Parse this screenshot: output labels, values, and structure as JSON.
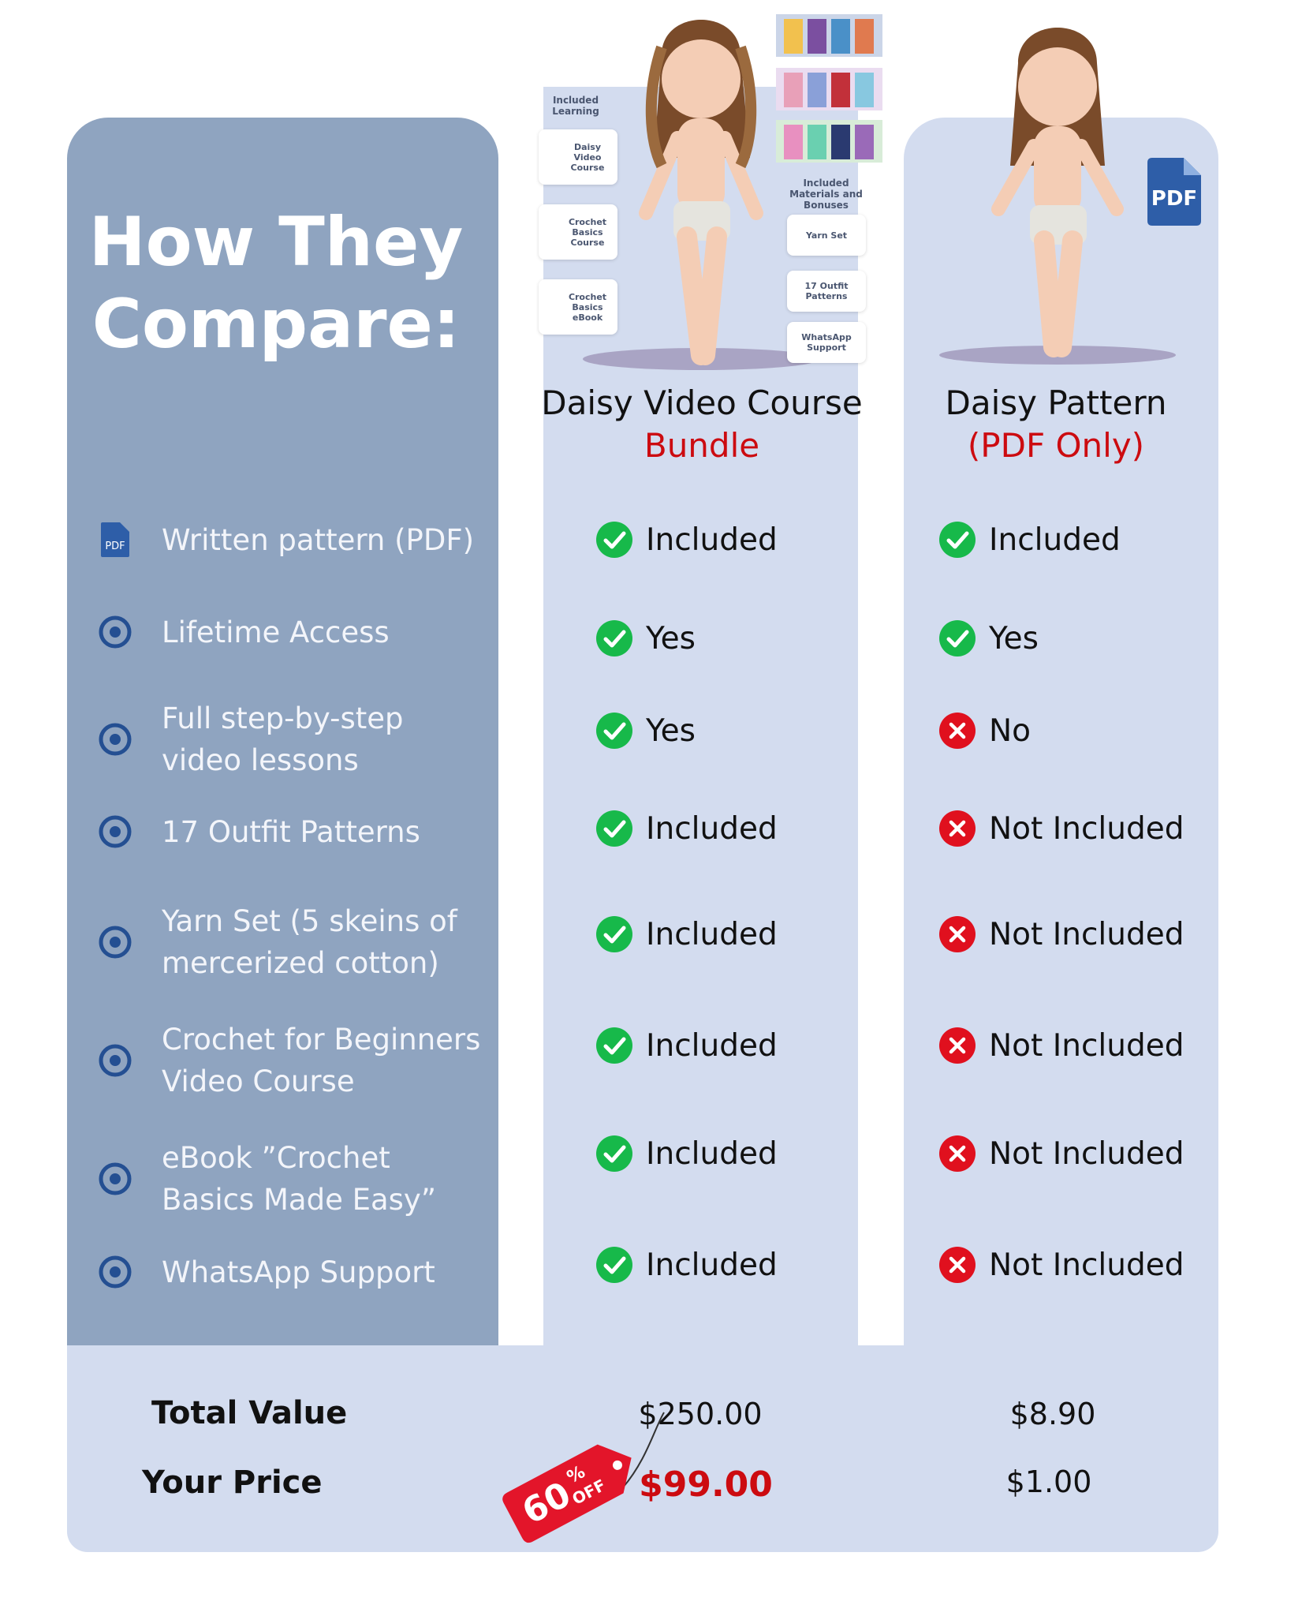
{
  "title": "How They Compare:",
  "columns": [
    {
      "name": "Daisy Video Course",
      "highlight": "Bundle"
    },
    {
      "name": "Daisy Pattern",
      "highlight": "(PDF Only)"
    }
  ],
  "bundle_image": {
    "learning_heading": "Included Learning",
    "learning_items": [
      "Daisy Video Course",
      "Crochet Basics Course",
      "Crochet Basics eBook"
    ],
    "materials_heading": "Included Materials and Bonuses",
    "materials_items": [
      "Yarn Set",
      "17 Outfit Patterns",
      "WhatsApp Support"
    ]
  },
  "pattern_icon": "PDF",
  "features": [
    "Written pattern (PDF)",
    "Lifetime Access",
    "Full step-by-step video lessons",
    "17 Outfit Patterns",
    "Yarn Set (5 skeins of mercerized cotton)",
    "Crochet for Beginners Video Course",
    "eBook ”Crochet Basics Made Easy”",
    "WhatsApp Support"
  ],
  "feature_icon_text": "PDF",
  "table": {
    "rows": [
      [
        {
          "status": "check",
          "text": "Included"
        },
        {
          "status": "check",
          "text": "Included"
        }
      ],
      [
        {
          "status": "check",
          "text": "Yes"
        },
        {
          "status": "check",
          "text": "Yes"
        }
      ],
      [
        {
          "status": "check",
          "text": "Yes"
        },
        {
          "status": "cross",
          "text": "No"
        }
      ],
      [
        {
          "status": "check",
          "text": "Included"
        },
        {
          "status": "cross",
          "text": "Not Included"
        }
      ],
      [
        {
          "status": "check",
          "text": "Included"
        },
        {
          "status": "cross",
          "text": "Not Included"
        }
      ],
      [
        {
          "status": "check",
          "text": "Included"
        },
        {
          "status": "cross",
          "text": "Not Included"
        }
      ],
      [
        {
          "status": "check",
          "text": "Included"
        },
        {
          "status": "cross",
          "text": "Not Included"
        }
      ],
      [
        {
          "status": "check",
          "text": "Included"
        },
        {
          "status": "cross",
          "text": "Not Included"
        }
      ]
    ]
  },
  "pricing": {
    "labels": [
      "Total Value",
      "Your Price"
    ],
    "bundle": [
      "$250.00",
      "$99.00"
    ],
    "pattern": [
      "$8.90",
      "$1.00"
    ],
    "discount": {
      "amount": "60",
      "percent": "%",
      "off": "OFF"
    }
  }
}
